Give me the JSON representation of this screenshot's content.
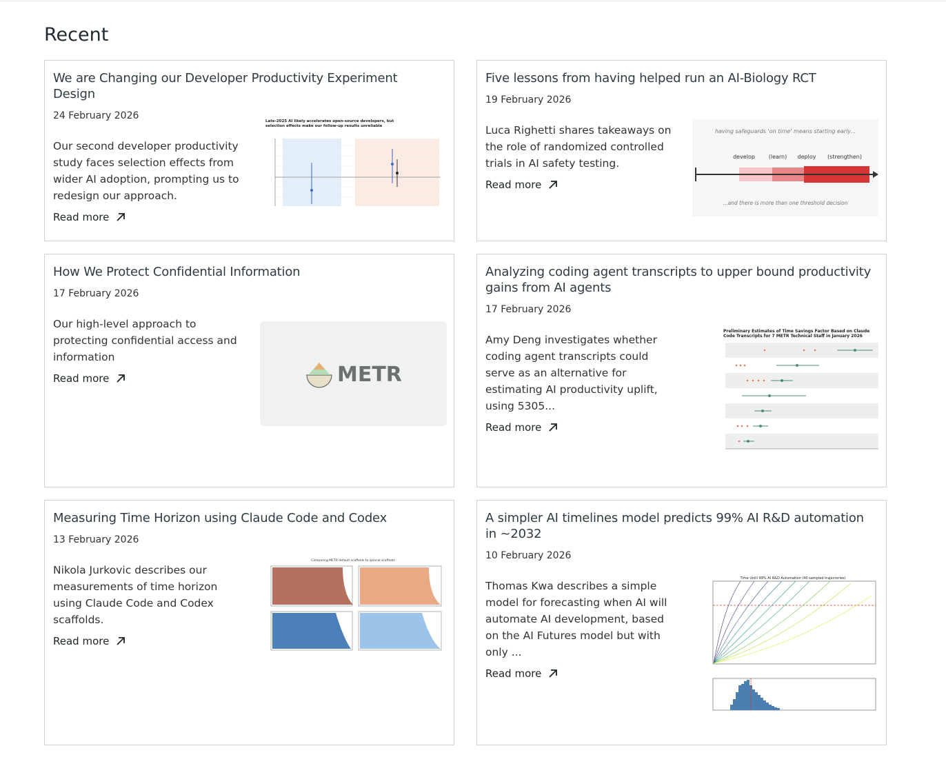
{
  "heading": "Recent",
  "cards": [
    {
      "title": "We are Changing our Developer Productivity Experiment Design",
      "date": "24 February 2026",
      "description": "Our second developer productivity study faces selection effects from wider AI adoption, prompting us to redesign our approach.",
      "link": "Read more",
      "image_text": "Late-2025 AI likely accelerates open-source developers, but selection effects make our follow-up results unreliable"
    },
    {
      "title": "Five lessons from having helped run an AI-Biology RCT",
      "date": "19 February 2026",
      "description": "Luca Righetti shares takeaways on the role of randomized controlled trials in AI safety testing.",
      "link": "Read more",
      "image_text": "having safeguards 'on time' means starting early...",
      "image_labels": [
        "develop",
        "(learn)",
        "deploy",
        "(strengthen)"
      ],
      "image_footer": "...and there is more than one threshold decision"
    },
    {
      "title": "How We Protect Confidential Information",
      "date": "17 February 2026",
      "description": "Our high-level approach to protecting confidential access and information",
      "link": "Read more",
      "image_text": "METR"
    },
    {
      "title": "Analyzing coding agent transcripts to upper bound productivity gains from AI agents",
      "date": "17 February 2026",
      "description": "Amy Deng investigates whether coding agent transcripts could serve as an alternative for estimating AI productivity uplift, using 5305...",
      "link": "Read more",
      "image_text": "Preliminary Estimates of Time Savings Factor Based on Claude Code Transcripts for 7 METR Technical Staff in January 2026"
    },
    {
      "title": "Measuring Time Horizon using Claude Code and Codex",
      "date": "13 February 2026",
      "description": "Nikola Jurkovic describes our measurements of time horizon using Claude Code and Codex scaffolds.",
      "link": "Read more",
      "image_text": "Comparing METR default scaffolds to special scaffolds"
    },
    {
      "title": "A simpler AI timelines model predicts 99% AI R&D automation in ~2032",
      "date": "10 February 2026",
      "description": "Thomas Kwa describes a simple model for forecasting when AI will automate AI development, based on the AI Futures model but with only ...",
      "link": "Read more",
      "image_text": "Time Until 99% AI R&D Automation (40 sampled trajectories)"
    }
  ]
}
